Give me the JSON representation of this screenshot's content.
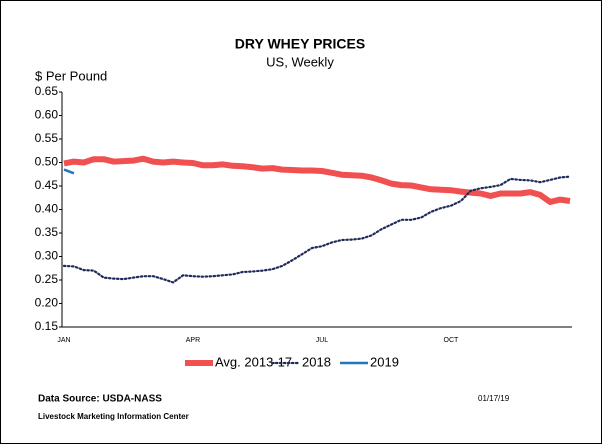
{
  "chart_data": {
    "type": "line",
    "title": "DRY WHEY PRICES",
    "subtitle": "US, Weekly",
    "y_label": "$ Per Pound",
    "categories": [
      "JAN",
      null,
      null,
      null,
      null,
      null,
      null,
      null,
      null,
      null,
      null,
      null,
      null,
      "APR",
      null,
      null,
      null,
      null,
      null,
      null,
      null,
      null,
      null,
      null,
      null,
      null,
      "JUL",
      null,
      null,
      null,
      null,
      null,
      null,
      null,
      null,
      null,
      null,
      null,
      null,
      "OCT",
      null,
      null,
      null,
      null,
      null,
      null,
      null,
      null,
      null,
      null,
      null,
      null
    ],
    "series": [
      {
        "name": "Avg. 2013-17",
        "color": "#f05050",
        "style": "solid",
        "width": 6,
        "values": [
          0.498,
          0.502,
          0.5,
          0.507,
          0.507,
          0.502,
          0.503,
          0.504,
          0.508,
          0.502,
          0.5,
          0.502,
          0.5,
          0.499,
          0.494,
          0.494,
          0.496,
          0.493,
          0.492,
          0.49,
          0.487,
          0.488,
          0.485,
          0.484,
          0.483,
          0.483,
          0.482,
          0.478,
          0.474,
          0.473,
          0.472,
          0.468,
          0.462,
          0.455,
          0.452,
          0.451,
          0.447,
          0.443,
          0.442,
          0.441,
          0.438,
          0.436,
          0.434,
          0.429,
          0.434,
          0.434,
          0.434,
          0.437,
          0.431,
          0.416,
          0.421,
          0.418
        ]
      },
      {
        "name": "2018",
        "color": "#1f2a5c",
        "style": "dotted",
        "width": 2.2,
        "values": [
          0.28,
          0.279,
          0.271,
          0.27,
          0.255,
          0.253,
          0.252,
          0.255,
          0.258,
          0.258,
          0.252,
          0.245,
          0.26,
          0.258,
          0.257,
          0.258,
          0.26,
          0.262,
          0.267,
          0.268,
          0.27,
          0.273,
          0.28,
          0.292,
          0.305,
          0.318,
          0.322,
          0.33,
          0.335,
          0.336,
          0.338,
          0.345,
          0.358,
          0.368,
          0.378,
          0.378,
          0.383,
          0.395,
          0.403,
          0.408,
          0.418,
          0.44,
          0.445,
          0.448,
          0.452,
          0.465,
          0.463,
          0.462,
          0.458,
          0.463,
          0.468,
          0.47
        ]
      },
      {
        "name": "2019",
        "color": "#1f77c0",
        "style": "solid",
        "width": 2.5,
        "values": [
          0.485,
          0.477,
          null,
          null,
          null,
          null,
          null,
          null,
          null,
          null,
          null,
          null,
          null,
          null,
          null,
          null,
          null,
          null,
          null,
          null,
          null,
          null,
          null,
          null,
          null,
          null,
          null,
          null,
          null,
          null,
          null,
          null,
          null,
          null,
          null,
          null,
          null,
          null,
          null,
          null,
          null,
          null,
          null,
          null,
          null,
          null,
          null,
          null,
          null,
          null,
          null,
          null
        ]
      }
    ],
    "ylim": [
      0.15,
      0.65
    ],
    "yticks": [
      0.65,
      {
        "value": 0.6,
        "label": "0.60"
      },
      0.55,
      {
        "value": 0.5,
        "label": "0.50"
      },
      0.45,
      {
        "value": 0.4,
        "label": "0.40"
      },
      0.35,
      {
        "value": 0.3,
        "label": "0.30"
      },
      0.25,
      {
        "value": 0.2,
        "label": "0.20"
      },
      0.15
    ],
    "legend": "bottom",
    "source": "Data Source:  USDA-NASS",
    "date": "01/17/19",
    "credit": "Livestock Marketing Information Center"
  }
}
